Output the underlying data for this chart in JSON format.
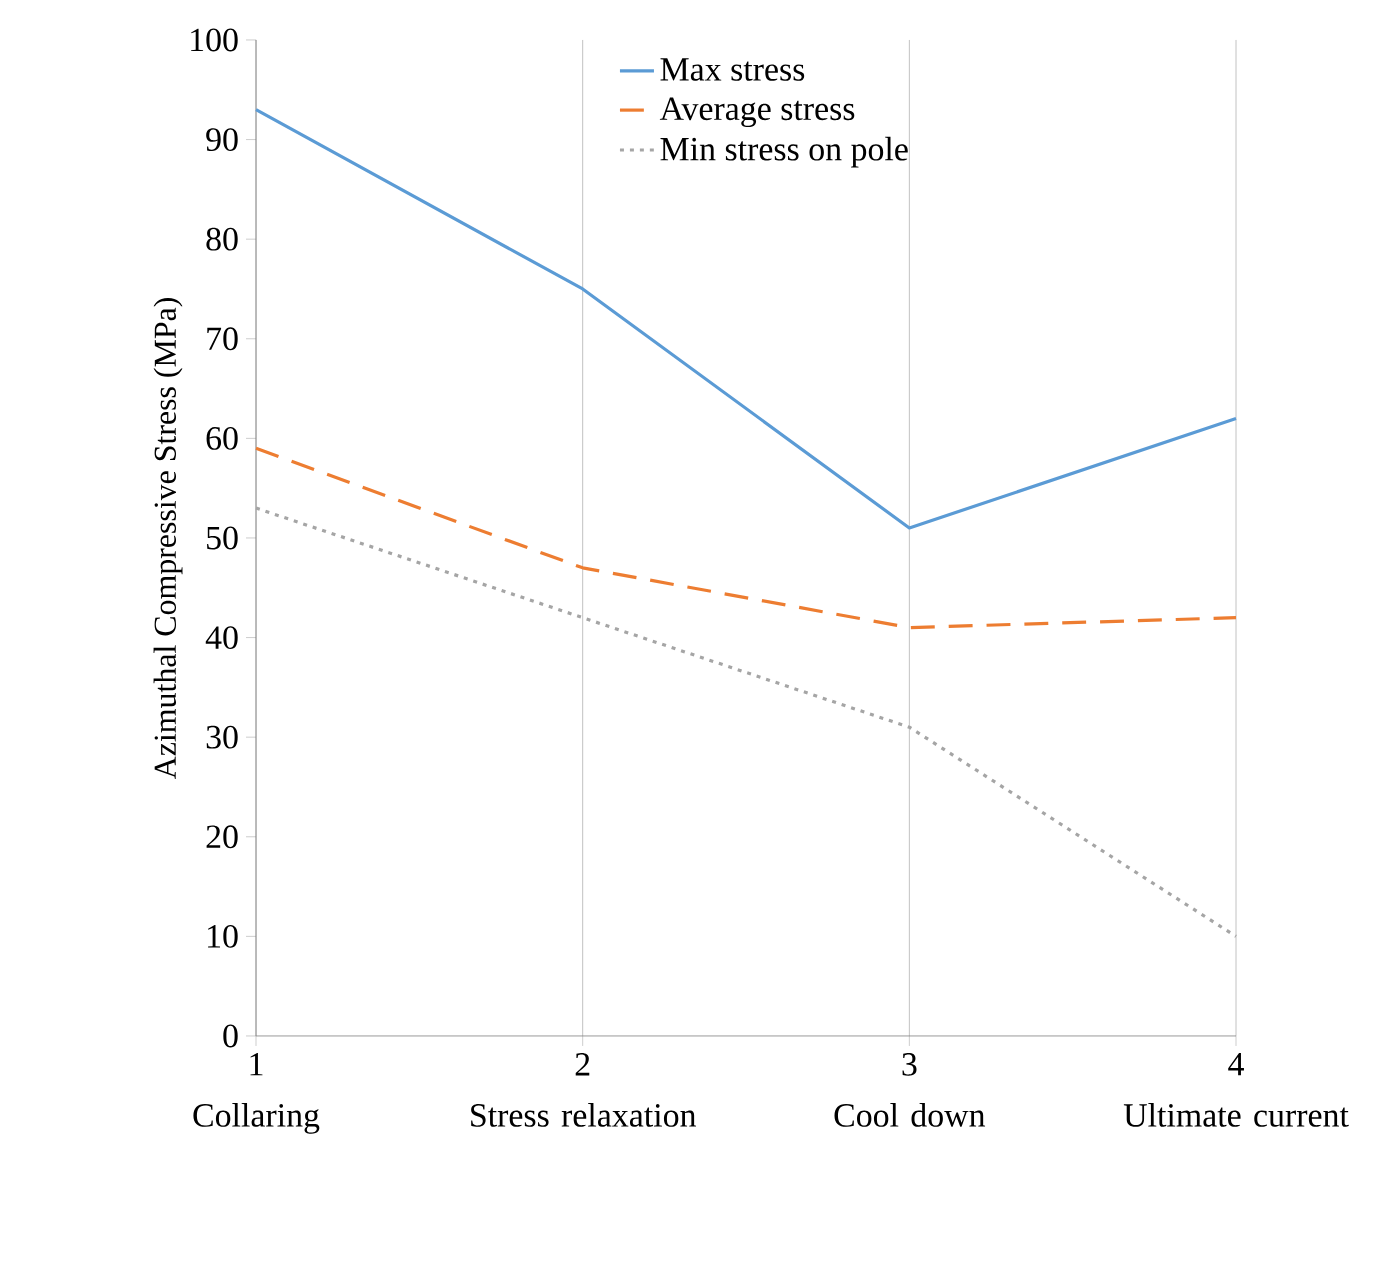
{
  "chart_data": {
    "type": "line",
    "ylabel": "Azimuthal Compressive Stress (MPa)",
    "x": [
      1,
      2,
      3,
      4
    ],
    "xlim": [
      1,
      4
    ],
    "xticks": [
      1,
      2,
      3,
      4
    ],
    "ylim": [
      0,
      100
    ],
    "yticks": [
      0,
      10,
      20,
      30,
      40,
      50,
      60,
      70,
      80,
      90,
      100
    ],
    "series": [
      {
        "name": "Max stress",
        "color": "#5b9bd5",
        "line_style": "solid",
        "values": [
          93,
          75,
          51,
          62
        ]
      },
      {
        "name": "Average stress",
        "color": "#ed7d31",
        "line_style": "dashed",
        "values": [
          59,
          47,
          41,
          42
        ]
      },
      {
        "name": "Min  stress on pole",
        "color": "#a5a5a5",
        "line_style": "dotted",
        "values": [
          53,
          42,
          31,
          10
        ]
      }
    ],
    "annotations": [
      "Collaring",
      "Stress relaxation",
      "Cool down",
      "Ultimate current"
    ],
    "grid": "x",
    "legend": "top",
    "marker": "none"
  }
}
